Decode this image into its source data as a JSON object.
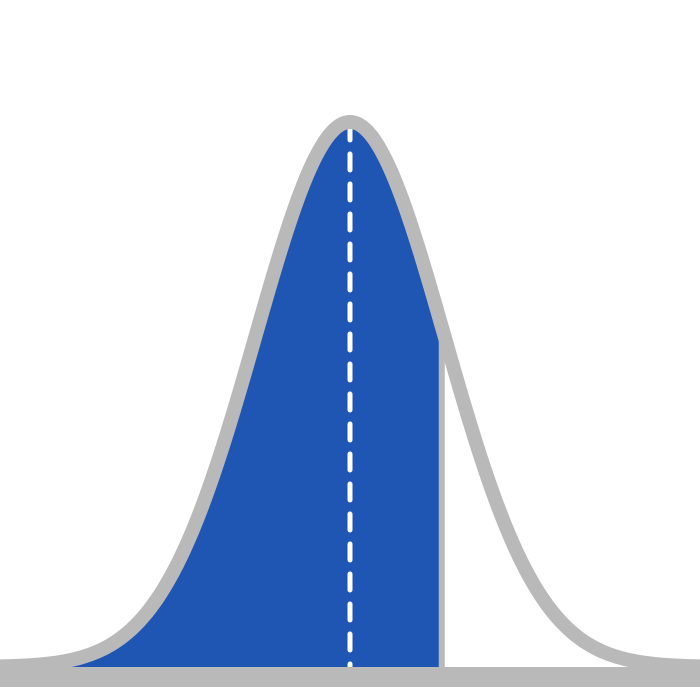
{
  "chart_data": {
    "type": "area",
    "distribution": "normal",
    "mean": 0,
    "sd": 1,
    "xlim": [
      -3.7,
      3.7
    ],
    "shaded_region": {
      "from": -3.7,
      "to": 0.97
    },
    "mean_line": {
      "x": 0,
      "style": "dashed"
    },
    "title": "",
    "xlabel": "",
    "ylabel": "",
    "grid": false,
    "colors": {
      "curve_outline": "#b9b9b9",
      "shaded_fill": "#1f55b3",
      "mean_line": "#ffffff",
      "background": "#ffffff",
      "baseline": "#b9b9b9"
    }
  }
}
